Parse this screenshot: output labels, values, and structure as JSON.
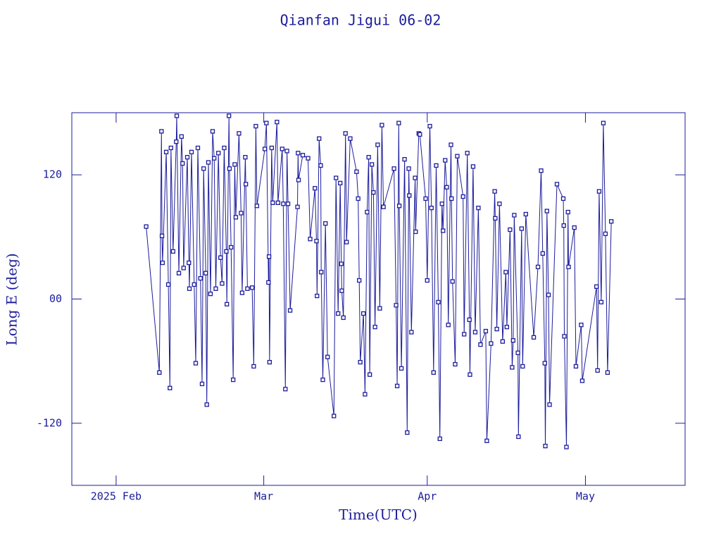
{
  "chart_data": {
    "type": "line",
    "title": "Qianfan Jigui 06-02",
    "xlabel": "Time(UTC)",
    "ylabel": "Long E (deg)",
    "color": "#1c1c9c",
    "marker": "square",
    "xlim": [
      23.6,
      139.9
    ],
    "xticks": [
      {
        "value": 32,
        "label": "2025 Feb"
      },
      {
        "value": 60,
        "label": "Mar"
      },
      {
        "value": 91,
        "label": "Apr"
      },
      {
        "value": 121,
        "label": "May"
      }
    ],
    "ylim": [
      -180,
      180
    ],
    "yticks": [
      -120,
      {
        "value": 0,
        "label": "00"
      },
      120
    ],
    "x": [
      37.7,
      40.2,
      40.6,
      40.7,
      40.8,
      41.5,
      41.9,
      42.2,
      42.4,
      42.8,
      43.4,
      43.5,
      43.9,
      44.4,
      44.6,
      44.8,
      45.5,
      45.8,
      45.9,
      46.3,
      46.8,
      47.1,
      47.5,
      48.0,
      48.3,
      48.6,
      49.0,
      49.2,
      49.5,
      49.9,
      50.3,
      50.6,
      50.9,
      51.4,
      51.8,
      52.1,
      52.5,
      52.9,
      53.0,
      53.4,
      53.5,
      53.8,
      54.2,
      54.5,
      54.7,
      55.3,
      55.7,
      55.9,
      56.5,
      56.6,
      56.9,
      57.8,
      58.1,
      58.5,
      58.7,
      60.2,
      60.5,
      60.9,
      61.0,
      61.1,
      61.5,
      61.7,
      62.5,
      62.7,
      63.5,
      63.7,
      64.1,
      64.4,
      64.6,
      65.0,
      66.4,
      66.5,
      66.6,
      67.4,
      68.4,
      68.8,
      69.7,
      70.0,
      70.1,
      70.5,
      70.8,
      70.9,
      71.2,
      71.7,
      72.1,
      73.3,
      73.7,
      74.1,
      74.5,
      74.7,
      74.8,
      75.1,
      75.5,
      75.7,
      76.4,
      77.6,
      77.9,
      78.1,
      78.3,
      78.9,
      79.2,
      79.6,
      79.9,
      80.1,
      80.5,
      80.8,
      81.1,
      81.6,
      82.0,
      82.4,
      82.7,
      84.7,
      85.1,
      85.3,
      85.6,
      85.7,
      86.1,
      86.7,
      87.2,
      87.5,
      87.6,
      88.0,
      88.7,
      88.8,
      89.4,
      89.6,
      90.7,
      91.0,
      91.5,
      91.8,
      92.2,
      92.7,
      93.1,
      93.4,
      93.8,
      94.0,
      94.4,
      94.7,
      95.0,
      95.5,
      95.6,
      95.8,
      96.3,
      96.7,
      97.8,
      98.0,
      98.6,
      99.0,
      99.1,
      99.7,
      100.1,
      100.7,
      101.1,
      102.1,
      102.3,
      103.1,
      103.8,
      103.9,
      104.2,
      104.7,
      105.3,
      105.9,
      106.1,
      106.7,
      107.1,
      107.3,
      107.5,
      108.2,
      108.3,
      108.9,
      109.1,
      109.7,
      111.2,
      112.0,
      112.6,
      112.9,
      113.3,
      113.4,
      113.7,
      114.0,
      114.2,
      115.6,
      116.8,
      116.9,
      117.0,
      117.4,
      117.7,
      117.8,
      118.9,
      119.2,
      120.2,
      120.4,
      123.1,
      123.3,
      123.6,
      124.0,
      124.4,
      124.8,
      125.2,
      125.9
    ],
    "values": [
      70,
      -71,
      162,
      61,
      35,
      142,
      14,
      -86,
      146,
      46,
      152,
      177,
      25,
      157,
      131,
      30,
      137,
      35,
      10,
      142,
      14,
      -62,
      146,
      20,
      -82,
      126,
      25,
      -102,
      132,
      5,
      162,
      136,
      10,
      141,
      40,
      15,
      146,
      46,
      -5,
      177,
      126,
      50,
      -78,
      130,
      79,
      160,
      83,
      6,
      137,
      111,
      10,
      11,
      -65,
      167,
      90,
      145,
      170,
      16,
      41,
      -61,
      146,
      93,
      171,
      93,
      145,
      92,
      -87,
      143,
      92,
      -11,
      89,
      141,
      115,
      139,
      136,
      58,
      107,
      56,
      3,
      155,
      129,
      26,
      -78,
      73,
      -56,
      -113,
      117,
      -14,
      112,
      34,
      8,
      -18,
      160,
      55,
      155,
      123,
      97,
      18,
      -61,
      -14,
      -92,
      84,
      137,
      -73,
      130,
      103,
      -27,
      149,
      -9,
      168,
      89,
      126,
      -6,
      -84,
      170,
      90,
      -67,
      135,
      -129,
      126,
      100,
      -32,
      117,
      65,
      160,
      159,
      97,
      18,
      167,
      88,
      -71,
      129,
      -3,
      -135,
      92,
      66,
      134,
      108,
      -25,
      149,
      97,
      17,
      -63,
      138,
      99,
      -34,
      141,
      -20,
      -73,
      128,
      -32,
      88,
      -44,
      -31,
      -137,
      -43,
      104,
      78,
      -29,
      92,
      -41,
      26,
      -27,
      67,
      -66,
      -40,
      81,
      -52,
      -133,
      68,
      -65,
      82,
      -37,
      31,
      124,
      44,
      -62,
      -142,
      85,
      4,
      -102,
      111,
      97,
      71,
      -36,
      -143,
      84,
      31,
      69,
      -65,
      -25,
      -79,
      12,
      -69,
      104,
      -3,
      170,
      63,
      -71,
      75
    ]
  }
}
